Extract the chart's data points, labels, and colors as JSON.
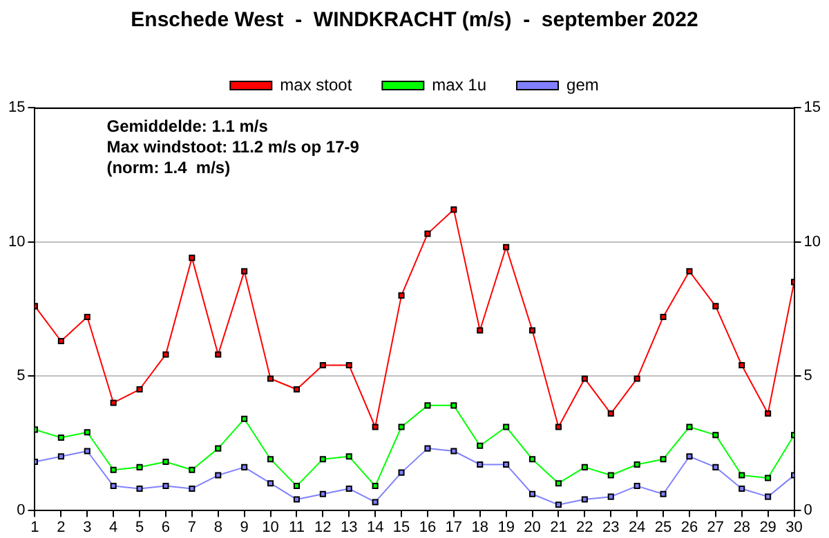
{
  "chart_data": {
    "type": "line",
    "title": "Enschede West  -  WINDKRACHT (m/s)  -  september 2022",
    "x": [
      1,
      2,
      3,
      4,
      5,
      6,
      7,
      8,
      9,
      10,
      11,
      12,
      13,
      14,
      15,
      16,
      17,
      18,
      19,
      20,
      21,
      22,
      23,
      24,
      25,
      26,
      27,
      28,
      29,
      30
    ],
    "xlim": [
      1,
      30
    ],
    "xticks": [
      1,
      2,
      3,
      4,
      5,
      6,
      7,
      8,
      9,
      10,
      11,
      12,
      13,
      14,
      15,
      16,
      17,
      18,
      19,
      20,
      21,
      22,
      23,
      24,
      25,
      26,
      27,
      28,
      29,
      30
    ],
    "ylim": [
      0,
      15
    ],
    "yticks": [
      0,
      5,
      10,
      15
    ],
    "y2lim": [
      0,
      15
    ],
    "y2ticks": [
      0,
      5,
      10,
      15
    ],
    "grid": "y",
    "legend": "top",
    "marker": "square",
    "line_style": "solid",
    "series": [
      {
        "name": "max stoot",
        "color": "#ff0000",
        "values": [
          7.6,
          6.3,
          7.2,
          4.0,
          4.5,
          5.8,
          9.4,
          5.8,
          8.9,
          4.9,
          4.5,
          5.4,
          5.4,
          3.1,
          8.0,
          10.3,
          11.2,
          6.7,
          9.8,
          6.7,
          3.1,
          4.9,
          3.6,
          4.9,
          7.2,
          8.9,
          7.6,
          5.4,
          3.6,
          8.5
        ]
      },
      {
        "name": "max 1u",
        "color": "#00ff00",
        "values": [
          3.0,
          2.7,
          2.9,
          1.5,
          1.6,
          1.8,
          1.5,
          2.3,
          3.4,
          1.9,
          0.9,
          1.9,
          2.0,
          0.9,
          3.1,
          3.9,
          3.9,
          2.4,
          3.1,
          1.9,
          1.0,
          1.6,
          1.3,
          1.7,
          1.9,
          3.1,
          2.8,
          1.3,
          1.2,
          2.8
        ]
      },
      {
        "name": "gem",
        "color": "#8080ff",
        "values": [
          1.8,
          2.0,
          2.2,
          0.9,
          0.8,
          0.9,
          0.8,
          1.3,
          1.6,
          1.0,
          0.4,
          0.6,
          0.8,
          0.3,
          1.4,
          2.3,
          2.2,
          1.7,
          1.7,
          0.6,
          0.2,
          0.4,
          0.5,
          0.9,
          0.6,
          2.0,
          1.6,
          0.8,
          0.5,
          1.3
        ]
      }
    ],
    "annotations": [
      "Gemiddelde: 1.1 m/s",
      "Max windstoot: 11.2 m/s op 17-9",
      "(norm: 1.4  m/s)"
    ]
  }
}
